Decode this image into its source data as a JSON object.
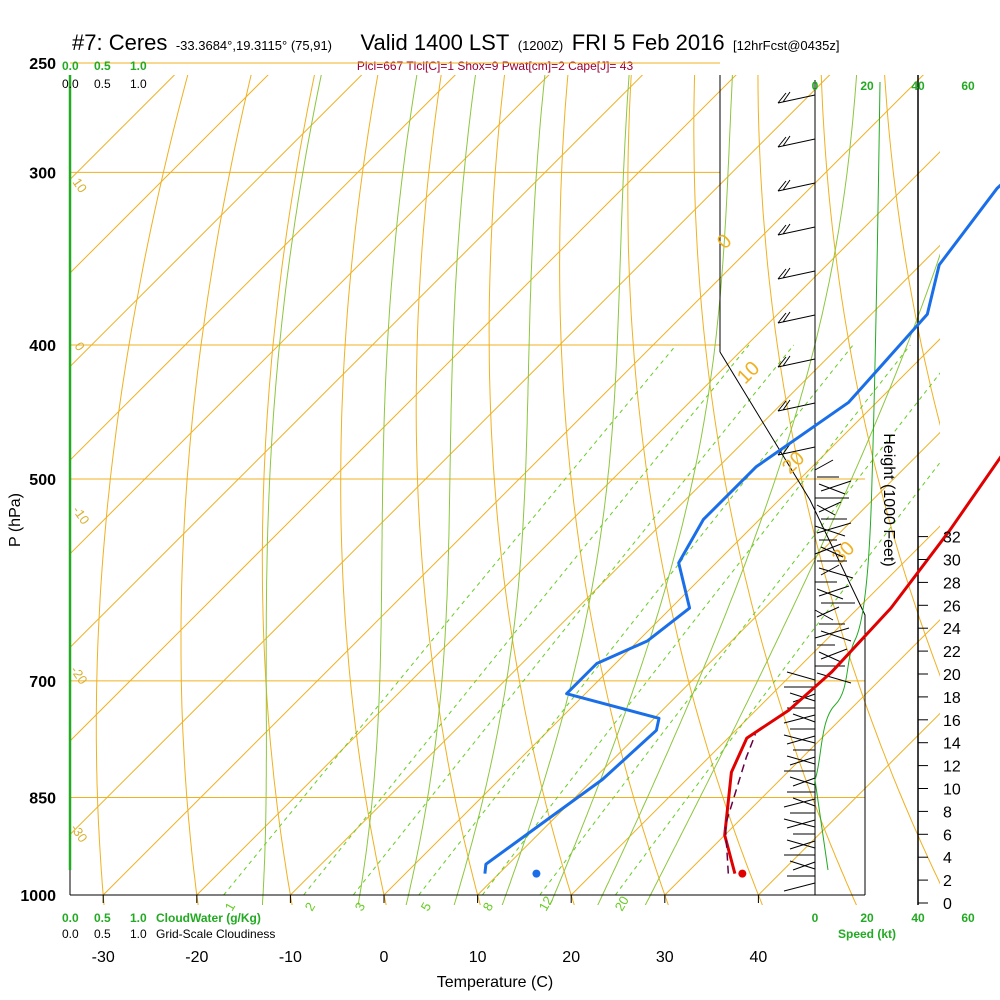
{
  "title": {
    "station": "#7: Ceres",
    "coords": "-33.3684°,19.3115° (75,91)",
    "valid": "Valid 1400 LST",
    "zulu": "(1200Z)",
    "date": "FRI 5 Feb 2016",
    "forecast": "[12hrFcst@0435z]"
  },
  "subtitle": "Plcl=667 Tlcl[C]=1 Shox=9 Pwat[cm]=2 Cape[J]= 43",
  "axes": {
    "xlabel": "Temperature (C)",
    "ylabel": "P (hPa)",
    "y2label": "Height (1000 Feet)",
    "speed_label": "Speed (kt)",
    "xticks": [
      "-30",
      "-20",
      "-10",
      "0",
      "10",
      "20",
      "30",
      "40"
    ],
    "yticks": [
      "250",
      "300",
      "400",
      "500",
      "700",
      "850",
      "1000"
    ],
    "height_ticks": [
      "0",
      "2",
      "4",
      "6",
      "8",
      "10",
      "12",
      "14",
      "16",
      "18",
      "20",
      "22",
      "24",
      "26",
      "28",
      "30",
      "32"
    ],
    "speed_ticks_top": [
      "0",
      "20",
      "40",
      "60"
    ],
    "speed_ticks_bottom": [
      "0",
      "20",
      "40",
      "60"
    ],
    "cloud_ticks": [
      "0.0",
      "0.5",
      "1.0"
    ],
    "cloud_water_label": "CloudWater (g/Kg)",
    "grid_cloud_label": "Grid-Scale Cloudiness",
    "isotherm_labels": [
      "0",
      "10",
      "20",
      "30"
    ],
    "dry_labels": [
      "10",
      "0",
      "-10",
      "-20",
      "-30"
    ],
    "mix_labels": [
      "1",
      "2",
      "3",
      "5",
      "8",
      "12",
      "20"
    ]
  },
  "chart_data": {
    "type": "line",
    "title": "#7: Ceres Valid 1400 LST FRI 5 Feb 2016",
    "xlabel": "Temperature (C)",
    "ylabel": "P (hPa)",
    "xlim": [
      -35,
      45
    ],
    "ylim": [
      1000,
      250
    ],
    "y_scale": "log",
    "series": [
      {
        "name": "Temperature",
        "color": "#e00000",
        "points": [
          [
            35.2,
            965
          ],
          [
            30,
            905
          ],
          [
            24,
            815
          ],
          [
            22,
            770
          ],
          [
            23.5,
            735
          ],
          [
            24,
            690
          ],
          [
            23.5,
            620
          ],
          [
            21.5,
            545
          ],
          [
            19,
            480
          ],
          [
            14.7,
            400
          ],
          [
            10,
            340
          ],
          [
            7,
            300
          ],
          [
            3,
            258
          ]
        ]
      },
      {
        "name": "Dewpoint",
        "color": "#1a6fe8",
        "points": [
          [
            8.5,
            965
          ],
          [
            7.6,
            950
          ],
          [
            11,
            825
          ],
          [
            11.5,
            760
          ],
          [
            10.5,
            745
          ],
          [
            -2,
            715
          ],
          [
            -2,
            680
          ],
          [
            1,
            655
          ],
          [
            2,
            620
          ],
          [
            -4,
            575
          ],
          [
            -6,
            535
          ],
          [
            -6,
            490
          ],
          [
            -3,
            440
          ],
          [
            -4,
            380
          ],
          [
            -8,
            350
          ],
          [
            -10,
            308
          ],
          [
            -9,
            270
          ],
          [
            -8,
            256
          ]
        ]
      },
      {
        "name": "Parcel",
        "color": "#660044",
        "points": [
          [
            34.5,
            965
          ],
          [
            29,
            890
          ],
          [
            24,
            795
          ],
          [
            22.5,
            765
          ]
        ]
      }
    ],
    "surface_temperature": 36,
    "surface_dewpoint": 14,
    "surface_pressure": 965,
    "isotherms": [
      -110,
      -100,
      -90,
      -80,
      -70,
      -60,
      -50,
      -40,
      -30,
      -20,
      -10,
      0,
      10,
      20,
      30,
      40
    ],
    "isobars": [
      250,
      300,
      400,
      500,
      700,
      850,
      1000
    ],
    "dry_adiabats_C": [
      -30,
      -20,
      -10,
      0,
      10,
      20,
      30,
      40,
      50,
      60,
      70,
      80,
      90,
      100,
      110
    ],
    "mixing_ratios": [
      1,
      2,
      3,
      5,
      8,
      12,
      20
    ],
    "grid": true
  }
}
